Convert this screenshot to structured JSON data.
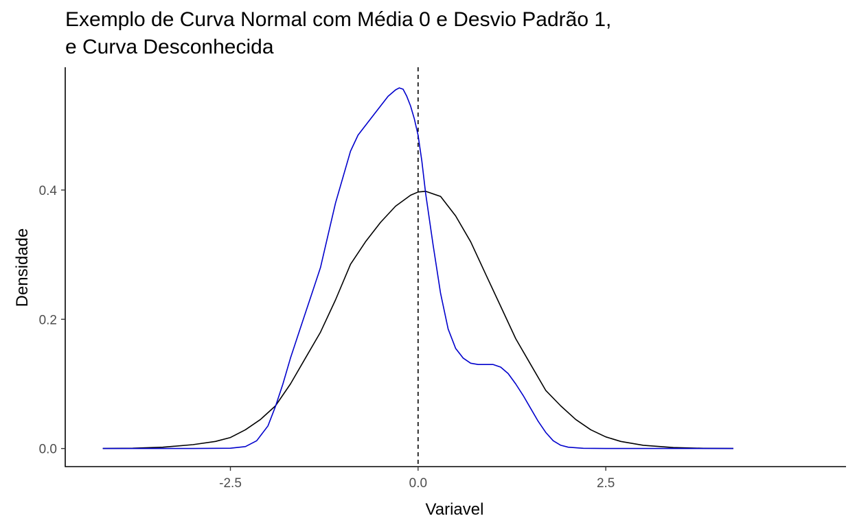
{
  "chart_data": {
    "type": "line",
    "title": [
      "Exemplo de Curva Normal com Média 0 e Desvio Padrão 1,",
      "e Curva Desconhecida"
    ],
    "xlabel": "Variavel",
    "ylabel": "Densidade",
    "xlim": [
      -4.7,
      5.7
    ],
    "ylim": [
      -0.028,
      0.59
    ],
    "x_ticks": [
      -2.5,
      0.0,
      2.5
    ],
    "x_tick_labels": [
      "-2.5",
      "0.0",
      "2.5"
    ],
    "y_ticks": [
      0.0,
      0.2,
      0.4
    ],
    "y_tick_labels": [
      "0.0",
      "0.2",
      "0.4"
    ],
    "grid": false,
    "vline": {
      "x": 0.0,
      "style": "dashed",
      "color": "#000000"
    },
    "series": [
      {
        "color": "#000000",
        "x": [
          -4.2,
          -3.8,
          -3.4,
          -3.0,
          -2.7,
          -2.5,
          -2.3,
          -2.1,
          -1.9,
          -1.7,
          -1.5,
          -1.3,
          -1.1,
          -0.9,
          -0.7,
          -0.5,
          -0.3,
          -0.1,
          0.0,
          0.1,
          0.3,
          0.5,
          0.7,
          0.9,
          1.1,
          1.3,
          1.5,
          1.7,
          1.9,
          2.1,
          2.3,
          2.5,
          2.7,
          3.0,
          3.4,
          3.8,
          4.2
        ],
        "y": [
          0.0,
          0.0005,
          0.002,
          0.006,
          0.011,
          0.017,
          0.029,
          0.045,
          0.066,
          0.1,
          0.14,
          0.18,
          0.23,
          0.285,
          0.32,
          0.35,
          0.375,
          0.392,
          0.397,
          0.398,
          0.39,
          0.36,
          0.32,
          0.27,
          0.22,
          0.17,
          0.13,
          0.09,
          0.066,
          0.045,
          0.029,
          0.018,
          0.011,
          0.005,
          0.0015,
          0.0003,
          0.0
        ]
      },
      {
        "color": "#0000cc",
        "x": [
          -4.2,
          -3.5,
          -3.0,
          -2.5,
          -2.3,
          -2.15,
          -2.0,
          -1.9,
          -1.8,
          -1.7,
          -1.6,
          -1.5,
          -1.4,
          -1.3,
          -1.2,
          -1.1,
          -1.0,
          -0.9,
          -0.8,
          -0.6,
          -0.4,
          -0.3,
          -0.25,
          -0.2,
          -0.15,
          -0.1,
          -0.05,
          0.0,
          0.05,
          0.1,
          0.2,
          0.3,
          0.4,
          0.5,
          0.6,
          0.7,
          0.8,
          0.9,
          1.0,
          1.1,
          1.2,
          1.3,
          1.4,
          1.5,
          1.6,
          1.7,
          1.8,
          1.9,
          2.0,
          2.2,
          2.5,
          3.0,
          4.2
        ],
        "y": [
          0.0,
          0.0,
          0.0,
          0.0005,
          0.003,
          0.012,
          0.035,
          0.065,
          0.1,
          0.14,
          0.175,
          0.21,
          0.245,
          0.28,
          0.33,
          0.38,
          0.42,
          0.46,
          0.485,
          0.515,
          0.545,
          0.555,
          0.558,
          0.556,
          0.545,
          0.53,
          0.51,
          0.485,
          0.445,
          0.395,
          0.315,
          0.24,
          0.185,
          0.155,
          0.14,
          0.132,
          0.13,
          0.13,
          0.13,
          0.126,
          0.116,
          0.1,
          0.082,
          0.062,
          0.042,
          0.025,
          0.012,
          0.005,
          0.002,
          0.0003,
          0.0,
          0.0,
          0.0
        ]
      }
    ]
  }
}
